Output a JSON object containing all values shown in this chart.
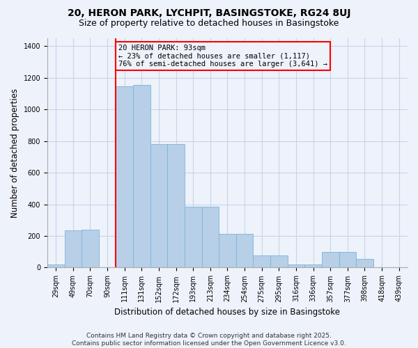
{
  "title": "20, HERON PARK, LYCHPIT, BASINGSTOKE, RG24 8UJ",
  "subtitle": "Size of property relative to detached houses in Basingstoke",
  "xlabel": "Distribution of detached houses by size in Basingstoke",
  "ylabel": "Number of detached properties",
  "categories": [
    "29sqm",
    "49sqm",
    "70sqm",
    "90sqm",
    "111sqm",
    "131sqm",
    "152sqm",
    "172sqm",
    "193sqm",
    "213sqm",
    "234sqm",
    "254sqm",
    "275sqm",
    "295sqm",
    "316sqm",
    "336sqm",
    "357sqm",
    "377sqm",
    "398sqm",
    "418sqm",
    "439sqm"
  ],
  "values": [
    20,
    235,
    240,
    0,
    1145,
    1155,
    780,
    780,
    385,
    385,
    215,
    215,
    75,
    75,
    20,
    20,
    100,
    100,
    55,
    0,
    0
  ],
  "bar_color": "#b8cfe8",
  "bar_edge_color": "#7ab4d8",
  "vline_index": 4,
  "vline_color": "red",
  "annotation_text": "20 HERON PARK: 93sqm\n← 23% of detached houses are smaller (1,117)\n76% of semi-detached houses are larger (3,641) →",
  "annotation_box_color": "red",
  "ylim": [
    0,
    1450
  ],
  "yticks": [
    0,
    200,
    400,
    600,
    800,
    1000,
    1200,
    1400
  ],
  "footer_line1": "Contains HM Land Registry data © Crown copyright and database right 2025.",
  "footer_line2": "Contains public sector information licensed under the Open Government Licence v3.0.",
  "background_color": "#eef2fa",
  "grid_color": "#c5d5ea",
  "title_fontsize": 10,
  "subtitle_fontsize": 9,
  "axis_label_fontsize": 8.5,
  "tick_fontsize": 7,
  "annotation_fontsize": 7.5,
  "footer_fontsize": 6.5
}
